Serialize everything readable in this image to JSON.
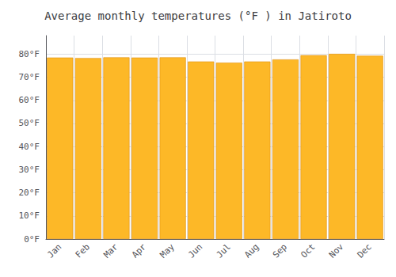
{
  "chart_data": {
    "type": "bar",
    "title": "Average monthly temperatures (°F ) in Jatiroto",
    "categories": [
      "Jan",
      "Feb",
      "Mar",
      "Apr",
      "May",
      "Jun",
      "Jul",
      "Aug",
      "Sep",
      "Oct",
      "Nov",
      "Dec"
    ],
    "values": [
      78.5,
      78.3,
      78.6,
      78.5,
      78.6,
      76.8,
      76.3,
      76.8,
      77.7,
      79.5,
      80.1,
      79.3
    ],
    "color": "#FDB827",
    "ylim": [
      0,
      88
    ],
    "yticks": [
      {
        "value": 0,
        "label": "0°F"
      },
      {
        "value": 10,
        "label": "10°F"
      },
      {
        "value": 20,
        "label": "20°F"
      },
      {
        "value": 30,
        "label": "30°F"
      },
      {
        "value": 40,
        "label": "40°F"
      },
      {
        "value": 50,
        "label": "50°F"
      },
      {
        "value": 60,
        "label": "60°F"
      },
      {
        "value": 70,
        "label": "70°F"
      },
      {
        "value": 80,
        "label": "80°F"
      }
    ],
    "grid": true
  }
}
